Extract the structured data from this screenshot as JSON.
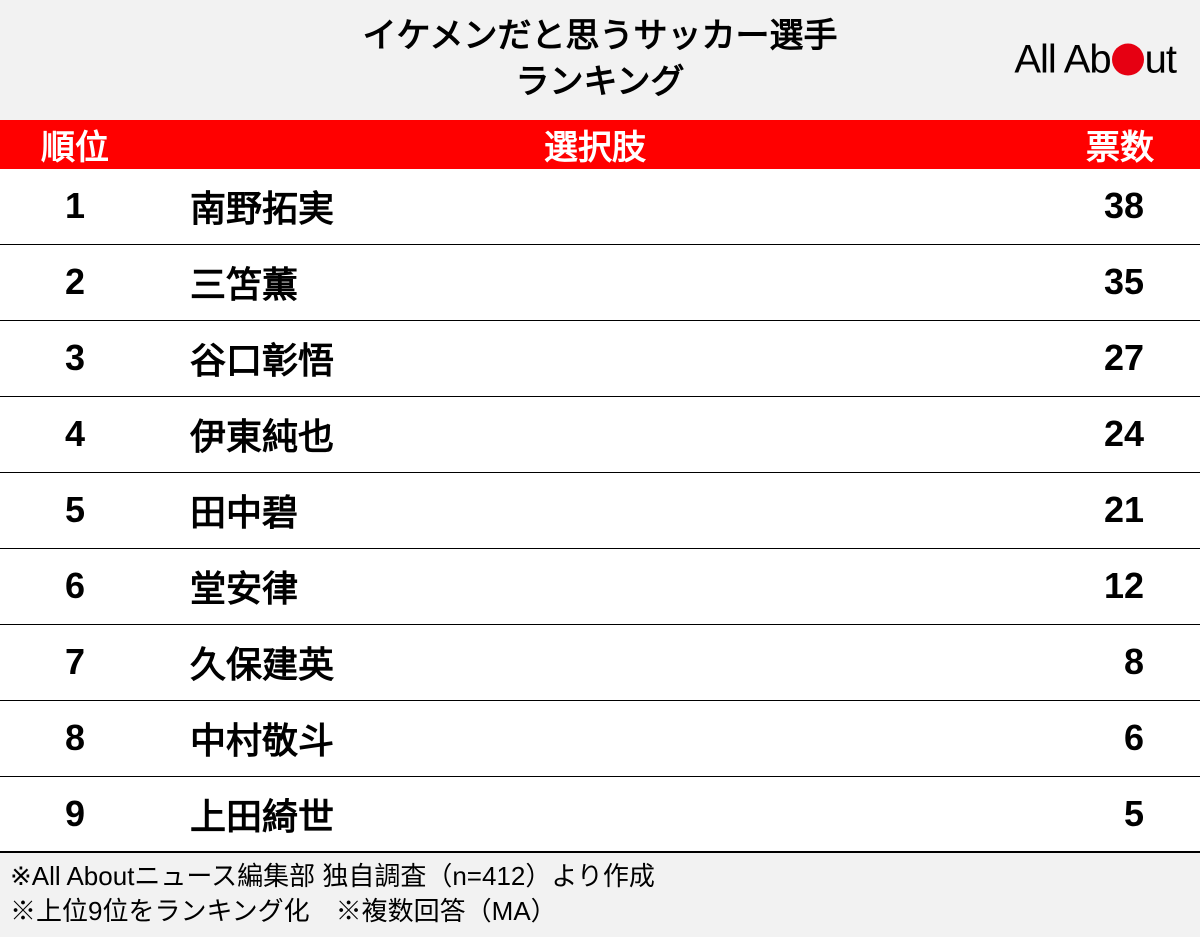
{
  "title": {
    "line1": "イケメンだと思うサッカー選手",
    "line2": "ランキング"
  },
  "logo": {
    "text_before": "All Ab",
    "text_after": "ut",
    "dot_color": "#e60012"
  },
  "colors": {
    "header_bg": "#ff0000",
    "header_text": "#ffffff",
    "title_bg": "#f2f2f2",
    "footer_bg": "#f2f2f2",
    "row_border": "#000000",
    "body_text": "#000000"
  },
  "columns": {
    "rank": "順位",
    "name": "選択肢",
    "votes": "票数"
  },
  "rows": [
    {
      "rank": "1",
      "name": "南野拓実",
      "votes": "38"
    },
    {
      "rank": "2",
      "name": "三笘薫",
      "votes": "35"
    },
    {
      "rank": "3",
      "name": "谷口彰悟",
      "votes": "27"
    },
    {
      "rank": "4",
      "name": "伊東純也",
      "votes": "24"
    },
    {
      "rank": "5",
      "name": "田中碧",
      "votes": "21"
    },
    {
      "rank": "6",
      "name": "堂安律",
      "votes": "12"
    },
    {
      "rank": "7",
      "name": "久保建英",
      "votes": "8"
    },
    {
      "rank": "8",
      "name": "中村敬斗",
      "votes": "6"
    },
    {
      "rank": "9",
      "name": "上田綺世",
      "votes": "5"
    }
  ],
  "footer": {
    "line1": "※All Aboutニュース編集部 独自調査（n=412）より作成",
    "line2": "※上位9位をランキング化　※複数回答（MA）"
  }
}
